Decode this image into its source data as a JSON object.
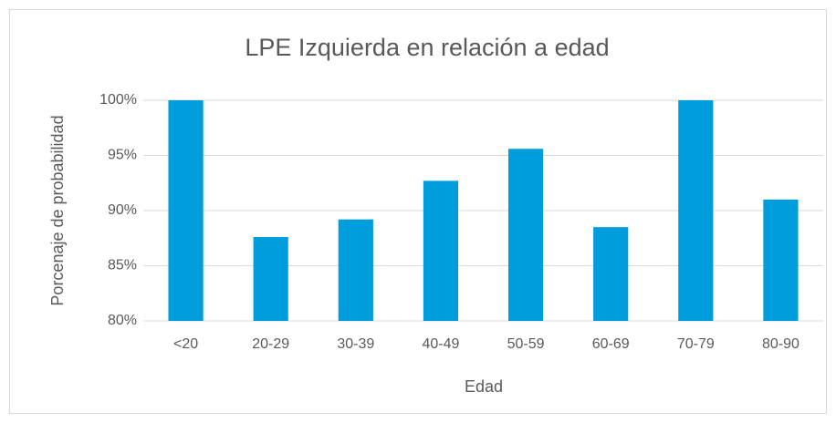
{
  "chart_data": {
    "type": "bar",
    "title": "LPE Izquierda en relación a edad",
    "x_label": "Edad",
    "y_label": "Porcenaje de probabilidad",
    "categories": [
      "<20",
      "20-29",
      "30-39",
      "40-49",
      "50-59",
      "60-69",
      "70-79",
      "80-90"
    ],
    "values": [
      100,
      87.6,
      89.2,
      92.7,
      95.6,
      88.5,
      100,
      91.0
    ],
    "color": "#009ddc",
    "ylim": [
      80,
      100
    ],
    "yticks": [
      {
        "value": 80,
        "label": "80%"
      },
      {
        "value": 85,
        "label": "85%"
      },
      {
        "value": 90,
        "label": "90%"
      },
      {
        "value": 95,
        "label": "95%"
      },
      {
        "value": 100,
        "label": "100%"
      }
    ],
    "grid": true
  }
}
